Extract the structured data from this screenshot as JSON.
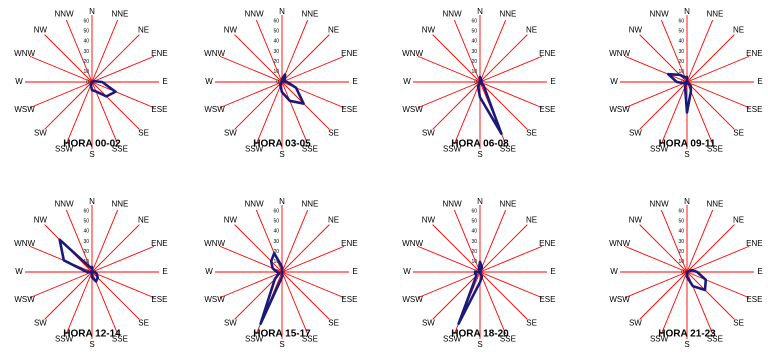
{
  "colors": {
    "spoke": "#ff0000",
    "series": "#1a1a7a",
    "text": "#000000",
    "background": "#ffffff"
  },
  "chart_data": [
    {
      "type": "radar",
      "title": "HORA 00-02",
      "categories": [
        "N",
        "NNE",
        "NE",
        "ENE",
        "E",
        "ESE",
        "SE",
        "SSE",
        "S",
        "SSW",
        "SW",
        "WSW",
        "W",
        "WNW",
        "NW",
        "NNW"
      ],
      "rlim": [
        0,
        60
      ],
      "r_ticks": [
        "60",
        "50",
        "40",
        "30",
        "20",
        "10",
        "0"
      ],
      "values": [
        0,
        0,
        0,
        2,
        10,
        25,
        20,
        10,
        8,
        3,
        0,
        0,
        0,
        0,
        0,
        0
      ]
    },
    {
      "type": "radar",
      "title": "HORA 03-05",
      "categories": [
        "N",
        "NNE",
        "NE",
        "ENE",
        "E",
        "ESE",
        "SE",
        "SSE",
        "S",
        "SSW",
        "SW",
        "WSW",
        "W",
        "WNW",
        "NW",
        "NNW"
      ],
      "rlim": [
        0,
        60
      ],
      "r_ticks": [
        "60",
        "50",
        "40",
        "30",
        "20",
        "10",
        "0"
      ],
      "values": [
        3,
        8,
        4,
        2,
        5,
        15,
        30,
        20,
        10,
        4,
        2,
        0,
        0,
        0,
        0,
        0
      ]
    },
    {
      "type": "radar",
      "title": "HORA 06-08",
      "categories": [
        "N",
        "NNE",
        "NE",
        "ENE",
        "E",
        "ESE",
        "SE",
        "SSE",
        "S",
        "SSW",
        "SW",
        "WSW",
        "W",
        "WNW",
        "NW",
        "NNW"
      ],
      "rlim": [
        0,
        60
      ],
      "r_ticks": [
        "60",
        "50",
        "40",
        "30",
        "20",
        "10",
        "0"
      ],
      "values": [
        5,
        3,
        2,
        2,
        0,
        0,
        5,
        55,
        15,
        5,
        0,
        0,
        0,
        0,
        0,
        0
      ]
    },
    {
      "type": "radar",
      "title": "HORA 09-11",
      "categories": [
        "N",
        "NNE",
        "NE",
        "ENE",
        "E",
        "ESE",
        "SE",
        "SSE",
        "S",
        "SSW",
        "SW",
        "WSW",
        "W",
        "WNW",
        "NW",
        "NNW"
      ],
      "rlim": [
        0,
        60
      ],
      "r_ticks": [
        "60",
        "50",
        "40",
        "30",
        "20",
        "10",
        "0"
      ],
      "values": [
        5,
        0,
        0,
        0,
        0,
        0,
        5,
        10,
        30,
        5,
        0,
        3,
        10,
        20,
        10,
        5
      ]
    },
    {
      "type": "radar",
      "title": "HORA 12-14",
      "categories": [
        "N",
        "NNE",
        "NE",
        "ENE",
        "E",
        "ESE",
        "SE",
        "SSE",
        "S",
        "SSW",
        "SW",
        "WSW",
        "W",
        "WNW",
        "NW",
        "NNW"
      ],
      "rlim": [
        0,
        60
      ],
      "r_ticks": [
        "60",
        "50",
        "40",
        "30",
        "20",
        "10",
        "0"
      ],
      "values": [
        5,
        0,
        0,
        0,
        3,
        5,
        8,
        10,
        5,
        0,
        0,
        0,
        5,
        30,
        45,
        5
      ]
    },
    {
      "type": "radar",
      "title": "HORA 15-17",
      "categories": [
        "N",
        "NNE",
        "NE",
        "ENE",
        "E",
        "ESE",
        "SE",
        "SSE",
        "S",
        "SSW",
        "SW",
        "WSW",
        "W",
        "WNW",
        "NW",
        "NNW"
      ],
      "rlim": [
        0,
        60
      ],
      "r_ticks": [
        "60",
        "50",
        "40",
        "30",
        "20",
        "10",
        "0"
      ],
      "values": [
        5,
        0,
        0,
        0,
        0,
        0,
        0,
        0,
        5,
        55,
        10,
        3,
        5,
        10,
        15,
        20
      ]
    },
    {
      "type": "radar",
      "title": "HORA 18-20",
      "categories": [
        "N",
        "NNE",
        "NE",
        "ENE",
        "E",
        "ESE",
        "SE",
        "SSE",
        "S",
        "SSW",
        "SW",
        "WSW",
        "W",
        "WNW",
        "NW",
        "NNW"
      ],
      "rlim": [
        0,
        60
      ],
      "r_ticks": [
        "60",
        "50",
        "40",
        "30",
        "20",
        "10",
        "0"
      ],
      "values": [
        10,
        5,
        0,
        0,
        0,
        0,
        0,
        5,
        10,
        55,
        5,
        5,
        5,
        0,
        0,
        3
      ]
    },
    {
      "type": "radar",
      "title": "HORA 21-23",
      "categories": [
        "N",
        "NNE",
        "NE",
        "ENE",
        "E",
        "ESE",
        "SE",
        "SSE",
        "S",
        "SSW",
        "SW",
        "WSW",
        "W",
        "WNW",
        "NW",
        "NNW"
      ],
      "rlim": [
        0,
        60
      ],
      "r_ticks": [
        "60",
        "50",
        "40",
        "30",
        "20",
        "10",
        "0"
      ],
      "values": [
        0,
        0,
        0,
        5,
        10,
        20,
        25,
        15,
        5,
        0,
        0,
        0,
        0,
        0,
        0,
        0
      ]
    }
  ]
}
